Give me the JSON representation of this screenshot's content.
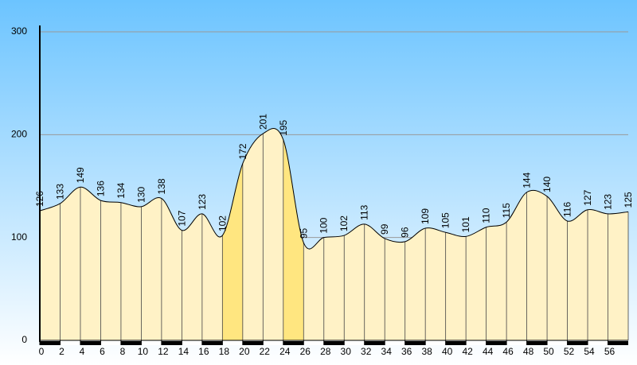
{
  "chart_data": {
    "type": "area",
    "x": [
      0,
      2,
      4,
      6,
      8,
      10,
      12,
      14,
      16,
      18,
      20,
      22,
      24,
      26,
      28,
      30,
      32,
      34,
      36,
      38,
      40,
      42,
      44,
      46,
      48,
      50,
      52,
      54,
      56,
      58
    ],
    "values": [
      126,
      133,
      149,
      136,
      134,
      130,
      138,
      107,
      123,
      102,
      172,
      201,
      195,
      95,
      100,
      102,
      113,
      99,
      96,
      109,
      105,
      101,
      110,
      115,
      144,
      140,
      116,
      127,
      123,
      125
    ],
    "color": "#fff2c6",
    "highlight_color": "#ffe680",
    "highlight_segments": [
      9,
      12
    ],
    "xlim": [
      0,
      58
    ],
    "xticks": [
      0,
      2,
      4,
      6,
      8,
      10,
      12,
      14,
      16,
      18,
      20,
      22,
      24,
      26,
      28,
      30,
      32,
      34,
      36,
      38,
      40,
      42,
      44,
      46,
      48,
      50,
      52,
      54,
      56
    ],
    "ylim": [
      0,
      300
    ],
    "yticks": [
      0,
      100,
      200,
      300
    ],
    "grid": true
  }
}
